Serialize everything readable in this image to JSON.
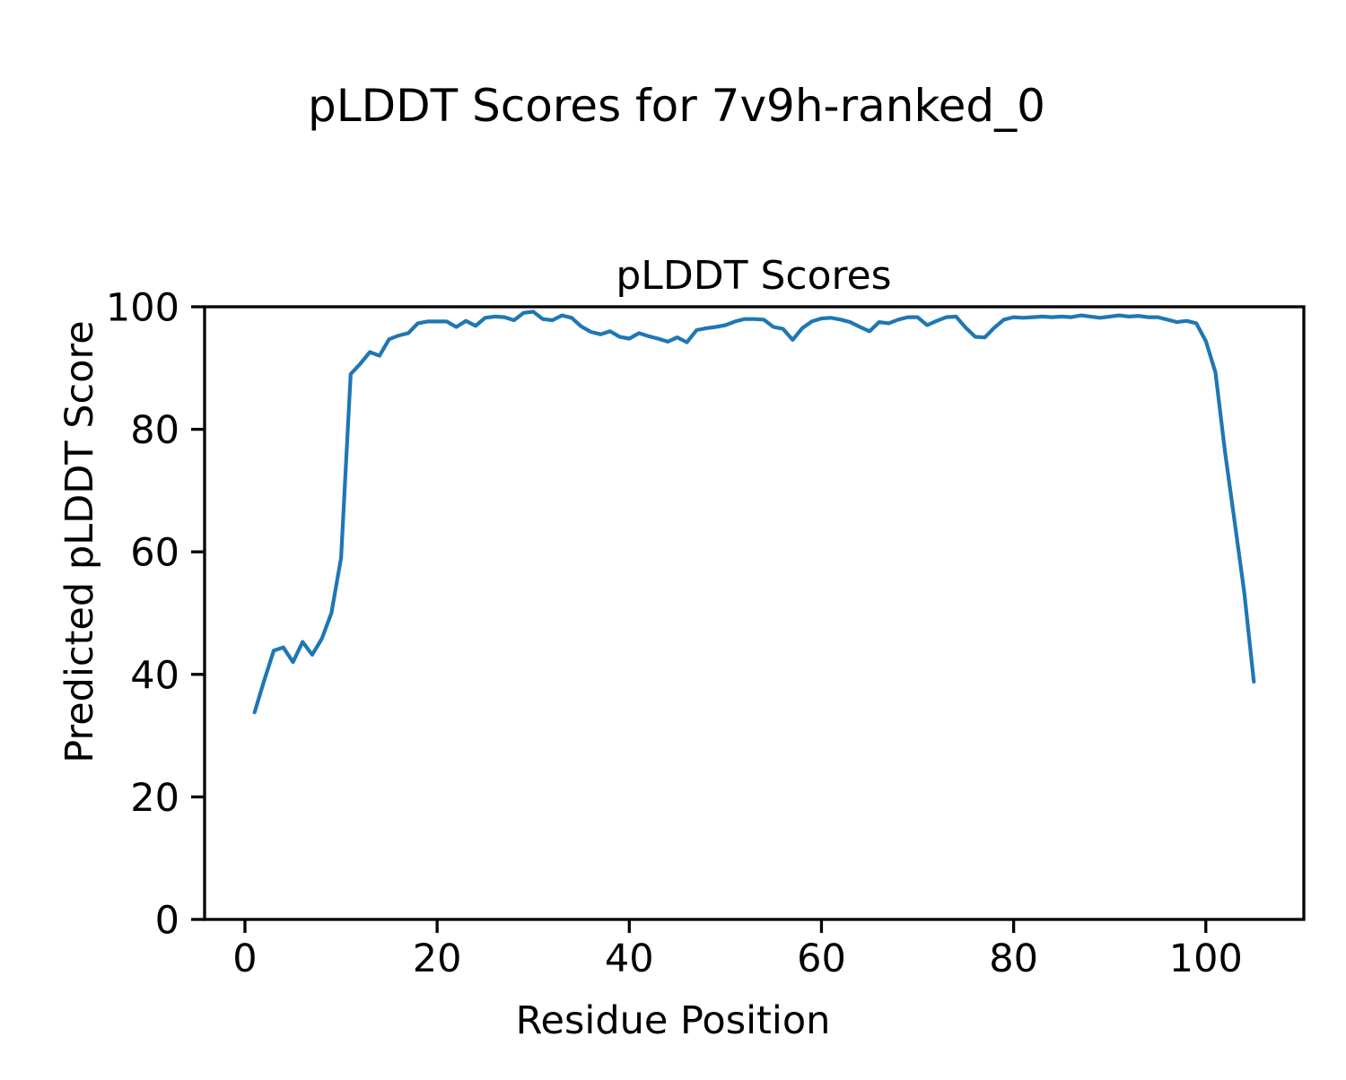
{
  "figure": {
    "title": "pLDDT Scores for 7v9h-ranked_0",
    "background": "#ffffff"
  },
  "chart_data": {
    "type": "line",
    "title": "pLDDT Scores",
    "xlabel": "Residue Position",
    "ylabel": "Predicted pLDDT Score",
    "grid": false,
    "legend_position": "none",
    "xlim": [
      -4.2,
      110.2
    ],
    "ylim": [
      0,
      100
    ],
    "x_ticks": [
      0,
      20,
      40,
      60,
      80,
      100
    ],
    "y_ticks": [
      0,
      20,
      40,
      60,
      80,
      100
    ],
    "series": [
      {
        "name": "pLDDT",
        "color": "#1f77b4",
        "line_width": 4.2,
        "x_start": 1,
        "values": [
          33.8,
          39.0,
          43.9,
          44.4,
          42.0,
          45.3,
          43.2,
          45.8,
          50.0,
          59.0,
          89.0,
          90.7,
          92.6,
          92.0,
          94.7,
          95.3,
          95.7,
          97.3,
          97.6,
          97.6,
          97.6,
          96.7,
          97.7,
          96.9,
          98.2,
          98.4,
          98.3,
          97.8,
          99.0,
          99.2,
          98.0,
          97.8,
          98.6,
          98.2,
          96.8,
          95.9,
          95.5,
          96.0,
          95.1,
          94.8,
          95.7,
          95.2,
          94.8,
          94.3,
          95.0,
          94.2,
          96.2,
          96.5,
          96.7,
          97.0,
          97.6,
          98.0,
          98.0,
          97.9,
          96.7,
          96.4,
          94.6,
          96.5,
          97.6,
          98.1,
          98.2,
          97.9,
          97.5,
          96.7,
          96.0,
          97.5,
          97.3,
          97.9,
          98.3,
          98.3,
          97.0,
          97.7,
          98.3,
          98.4,
          96.6,
          95.1,
          95.0,
          96.6,
          97.9,
          98.3,
          98.2,
          98.3,
          98.4,
          98.3,
          98.4,
          98.3,
          98.6,
          98.4,
          98.2,
          98.4,
          98.6,
          98.4,
          98.5,
          98.3,
          98.3,
          97.9,
          97.5,
          97.7,
          97.3,
          94.4,
          89.3,
          76.3,
          64.9,
          53.4,
          38.8
        ]
      }
    ]
  }
}
